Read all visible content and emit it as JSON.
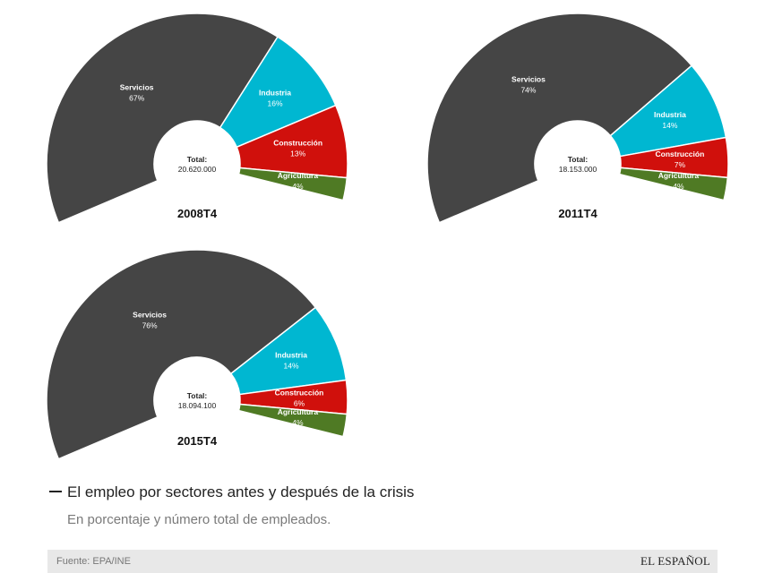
{
  "chart_data": [
    {
      "type": "pie",
      "title": "2008T4",
      "total_label": "Total:",
      "total_value": "20.620.000",
      "slices": [
        {
          "name": "Servicios",
          "value": 67,
          "label": "67%",
          "color": "#454545"
        },
        {
          "name": "Industria",
          "value": 16,
          "label": "16%",
          "color": "#00b7d1"
        },
        {
          "name": "Construcción",
          "value": 13,
          "label": "13%",
          "color": "#d0100c"
        },
        {
          "name": "Agricultura",
          "value": 4,
          "label": "4%",
          "color": "#4f7a24"
        }
      ]
    },
    {
      "type": "pie",
      "title": "2011T4",
      "total_label": "Total:",
      "total_value": "18.153.000",
      "slices": [
        {
          "name": "Servicios",
          "value": 74,
          "label": "74%",
          "color": "#454545"
        },
        {
          "name": "Industria",
          "value": 14,
          "label": "14%",
          "color": "#00b7d1"
        },
        {
          "name": "Construcción",
          "value": 7,
          "label": "7%",
          "color": "#d0100c"
        },
        {
          "name": "Agricultura",
          "value": 4,
          "label": "4%",
          "color": "#4f7a24"
        }
      ]
    },
    {
      "type": "pie",
      "title": "2015T4",
      "total_label": "Total:",
      "total_value": "18.094.100",
      "slices": [
        {
          "name": "Servicios",
          "value": 76,
          "label": "76%",
          "color": "#454545"
        },
        {
          "name": "Industria",
          "value": 14,
          "label": "14%",
          "color": "#00b7d1"
        },
        {
          "name": "Construcción",
          "value": 6,
          "label": "6%",
          "color": "#d0100c"
        },
        {
          "name": "Agricultura",
          "value": 4,
          "label": "4%",
          "color": "#4f7a24"
        }
      ]
    }
  ],
  "heading": "El empleo por sectores antes y después de la crisis",
  "subheading": "En porcentaje y número total de empleados.",
  "footer": {
    "source": "Fuente: EPA/INE",
    "logo": "EL ESPAÑOL"
  }
}
